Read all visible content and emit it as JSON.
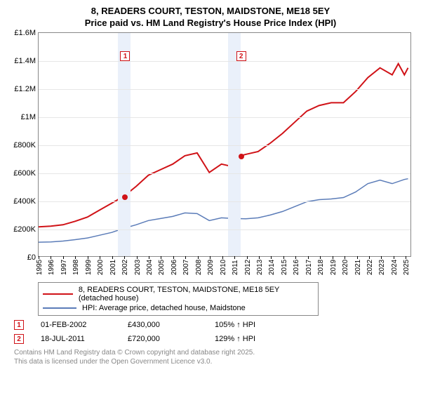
{
  "title_line1": "8, READERS COURT, TESTON, MAIDSTONE, ME18 5EY",
  "title_line2": "Price paid vs. HM Land Registry's House Price Index (HPI)",
  "chart": {
    "type": "line",
    "ylim": [
      0,
      1600000
    ],
    "ytick_step": 200000,
    "yticks": [
      {
        "v": 0,
        "label": "£0"
      },
      {
        "v": 200000,
        "label": "£200K"
      },
      {
        "v": 400000,
        "label": "£400K"
      },
      {
        "v": 600000,
        "label": "£600K"
      },
      {
        "v": 800000,
        "label": "£800K"
      },
      {
        "v": 1000000,
        "label": "£1M"
      },
      {
        "v": 1200000,
        "label": "£1.2M"
      },
      {
        "v": 1400000,
        "label": "£1.4M"
      },
      {
        "v": 1600000,
        "label": "£1.6M"
      }
    ],
    "xlim": [
      1995,
      2025.5
    ],
    "xticks": [
      1995,
      1996,
      1997,
      1998,
      1999,
      2000,
      2001,
      2002,
      2003,
      2004,
      2005,
      2006,
      2007,
      2008,
      2009,
      2010,
      2011,
      2012,
      2013,
      2014,
      2015,
      2016,
      2017,
      2018,
      2019,
      2020,
      2021,
      2022,
      2023,
      2024,
      2025
    ],
    "background_color": "#ffffff",
    "grid_color": "#e6e6e6",
    "shade_color": "#eaf0fa",
    "shade_ranges": [
      [
        2001.5,
        2002.5
      ],
      [
        2010.5,
        2011.5
      ]
    ],
    "series": [
      {
        "name": "property",
        "color": "#d01217",
        "width": 2,
        "markers": [
          {
            "x": 2002.08,
            "y": 430000
          },
          {
            "x": 2011.55,
            "y": 720000
          }
        ],
        "data": [
          [
            1995,
            210000
          ],
          [
            1996,
            215000
          ],
          [
            1997,
            225000
          ],
          [
            1998,
            250000
          ],
          [
            1999,
            280000
          ],
          [
            2000,
            330000
          ],
          [
            2001,
            380000
          ],
          [
            2002,
            430000
          ],
          [
            2003,
            500000
          ],
          [
            2004,
            580000
          ],
          [
            2005,
            620000
          ],
          [
            2006,
            660000
          ],
          [
            2007,
            720000
          ],
          [
            2008,
            740000
          ],
          [
            2009,
            600000
          ],
          [
            2010,
            660000
          ],
          [
            2011,
            640000
          ],
          [
            2011.55,
            720000
          ],
          [
            2012,
            730000
          ],
          [
            2013,
            750000
          ],
          [
            2014,
            810000
          ],
          [
            2015,
            880000
          ],
          [
            2016,
            960000
          ],
          [
            2017,
            1040000
          ],
          [
            2018,
            1080000
          ],
          [
            2019,
            1100000
          ],
          [
            2020,
            1100000
          ],
          [
            2021,
            1180000
          ],
          [
            2022,
            1280000
          ],
          [
            2023,
            1350000
          ],
          [
            2024,
            1300000
          ],
          [
            2024.5,
            1380000
          ],
          [
            2025,
            1300000
          ],
          [
            2025.3,
            1350000
          ]
        ]
      },
      {
        "name": "hpi",
        "color": "#5b7cb8",
        "width": 1.5,
        "data": [
          [
            1995,
            100000
          ],
          [
            1996,
            102000
          ],
          [
            1997,
            108000
          ],
          [
            1998,
            118000
          ],
          [
            1999,
            130000
          ],
          [
            2000,
            150000
          ],
          [
            2001,
            170000
          ],
          [
            2002,
            200000
          ],
          [
            2003,
            225000
          ],
          [
            2004,
            255000
          ],
          [
            2005,
            270000
          ],
          [
            2006,
            285000
          ],
          [
            2007,
            310000
          ],
          [
            2008,
            305000
          ],
          [
            2009,
            255000
          ],
          [
            2010,
            275000
          ],
          [
            2011,
            270000
          ],
          [
            2012,
            268000
          ],
          [
            2013,
            275000
          ],
          [
            2014,
            295000
          ],
          [
            2015,
            320000
          ],
          [
            2016,
            355000
          ],
          [
            2017,
            390000
          ],
          [
            2018,
            405000
          ],
          [
            2019,
            410000
          ],
          [
            2020,
            420000
          ],
          [
            2021,
            460000
          ],
          [
            2022,
            520000
          ],
          [
            2023,
            545000
          ],
          [
            2024,
            520000
          ],
          [
            2025,
            550000
          ],
          [
            2025.3,
            555000
          ]
        ]
      }
    ],
    "marker_annotations": [
      {
        "n": "1",
        "x": 2002.08,
        "color": "#d01217"
      },
      {
        "n": "2",
        "x": 2011.55,
        "color": "#d01217"
      }
    ]
  },
  "legend": {
    "items": [
      {
        "color": "#d01217",
        "width": 2,
        "label": "8, READERS COURT, TESTON, MAIDSTONE, ME18 5EY (detached house)"
      },
      {
        "color": "#5b7cb8",
        "width": 1.5,
        "label": "HPI: Average price, detached house, Maidstone"
      }
    ]
  },
  "transactions": [
    {
      "n": "1",
      "color": "#d01217",
      "date": "01-FEB-2002",
      "price": "£430,000",
      "delta": "105% ↑ HPI"
    },
    {
      "n": "2",
      "color": "#d01217",
      "date": "18-JUL-2011",
      "price": "£720,000",
      "delta": "129% ↑ HPI"
    }
  ],
  "footer": {
    "line1": "Contains HM Land Registry data © Crown copyright and database right 2025.",
    "line2": "This data is licensed under the Open Government Licence v3.0."
  }
}
